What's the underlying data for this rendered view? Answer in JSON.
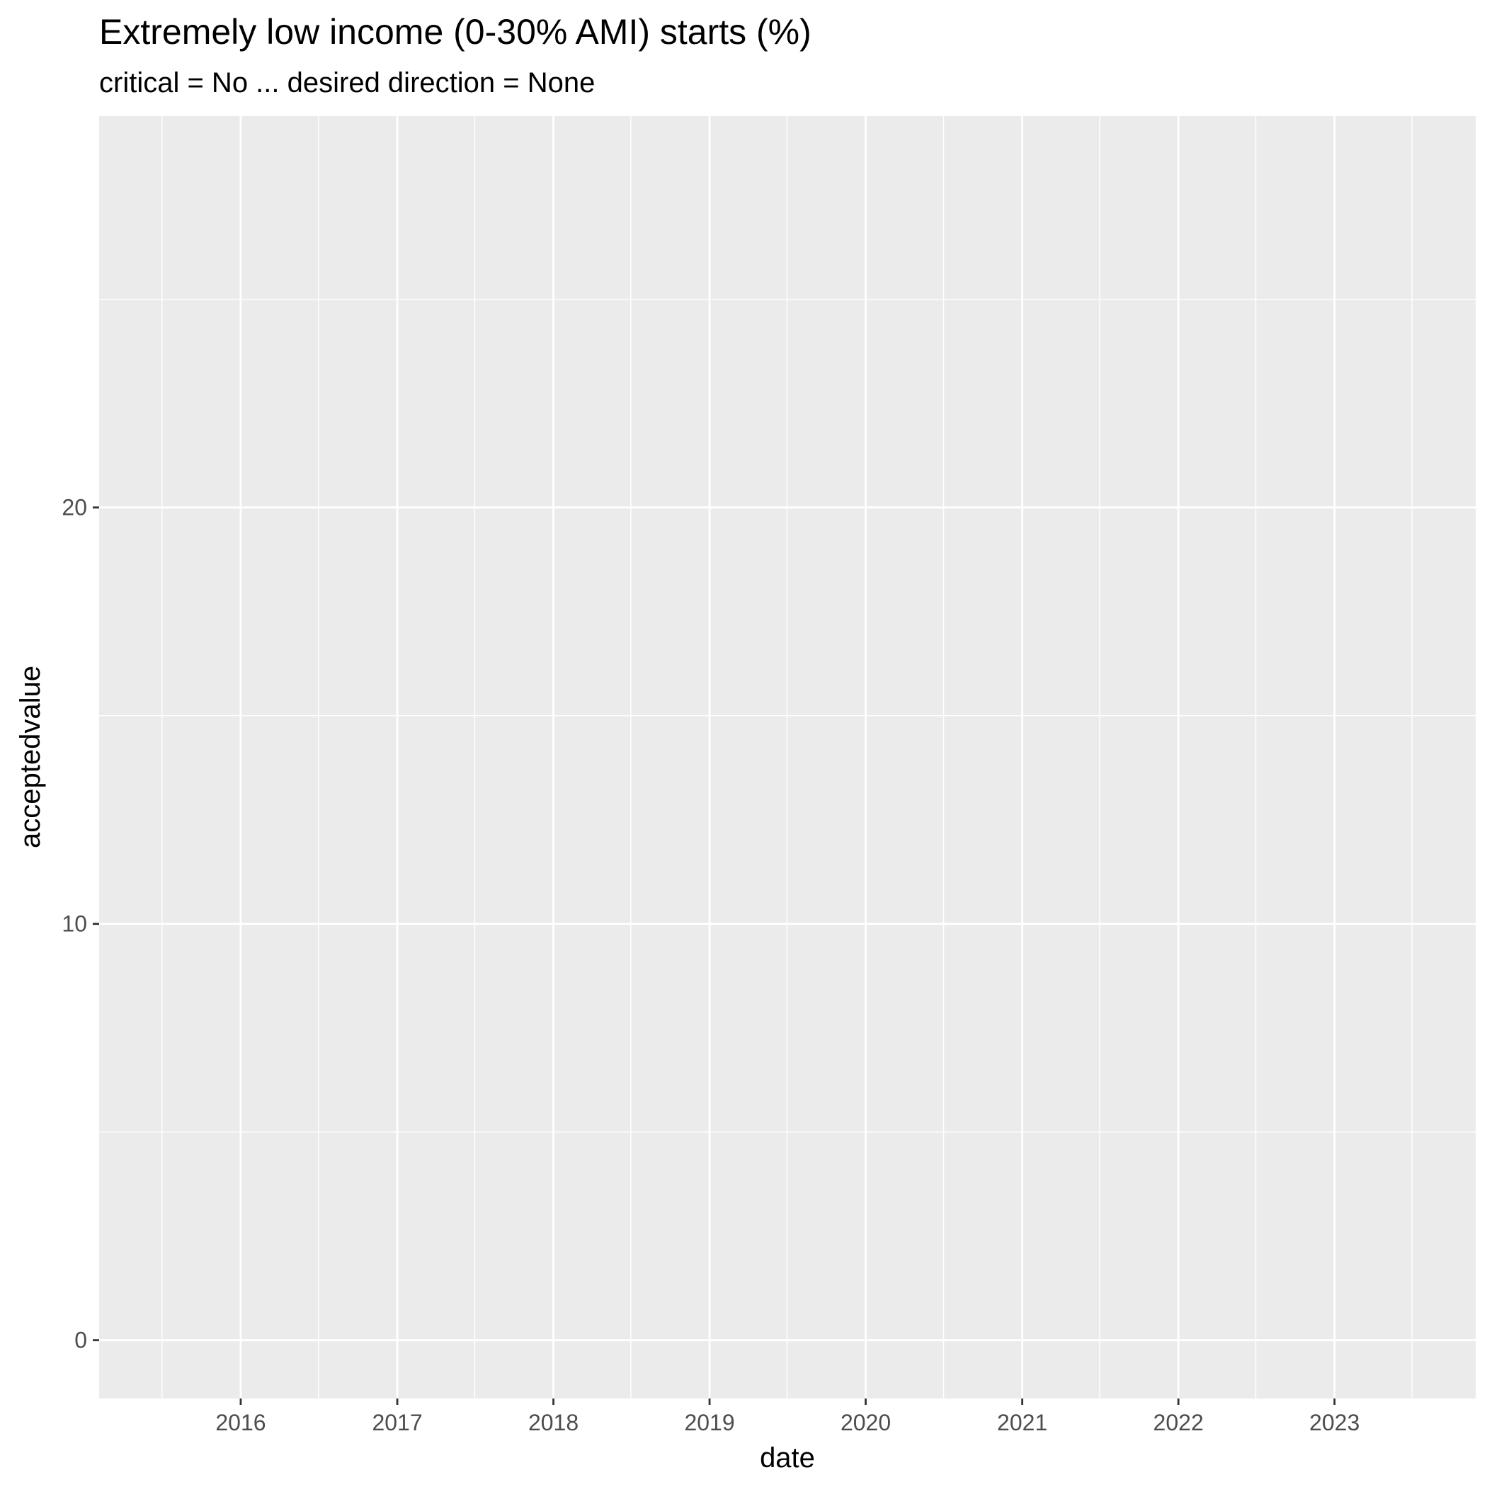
{
  "chart_data": {
    "type": "line",
    "title": "Extremely low income (0-30% AMI) starts (%)",
    "subtitle": "critical = No ... desired direction = None",
    "xlabel": "date",
    "ylabel": "acceptedvalue",
    "x_ticks": [
      "2016",
      "2017",
      "2018",
      "2019",
      "2020",
      "2021",
      "2022",
      "2023"
    ],
    "y_ticks": [
      0,
      10,
      20
    ],
    "xlim": [
      "2015-02-04",
      "2023-11-27"
    ],
    "ylim": [
      -1.4,
      29.4
    ],
    "series": [],
    "grid": true,
    "colors": {
      "panel_background": "#EBEBEB",
      "gridline": "#FFFFFF",
      "tick_mark": "#333333"
    }
  }
}
